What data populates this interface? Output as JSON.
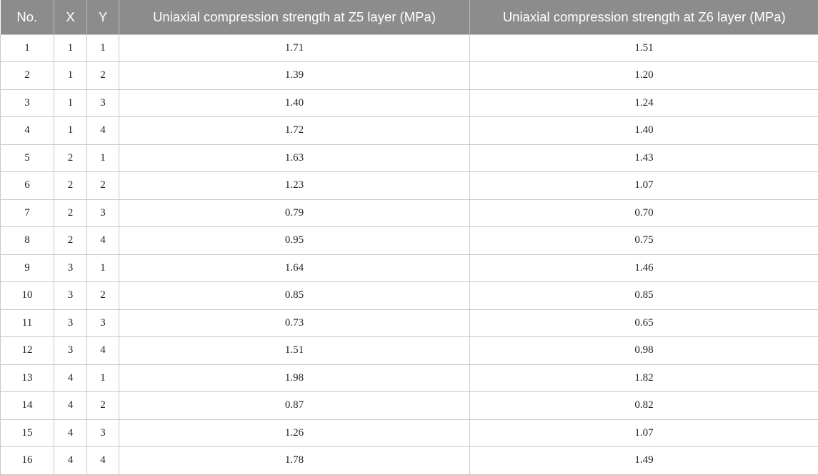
{
  "table": {
    "headers": [
      "No.",
      "X",
      "Y",
      "Uniaxial compression strength at Z5 layer (MPa)",
      "Uniaxial compression strength at Z6 layer (MPa)"
    ],
    "rows": [
      [
        "1",
        "1",
        "1",
        "1.71",
        "1.51"
      ],
      [
        "2",
        "1",
        "2",
        "1.39",
        "1.20"
      ],
      [
        "3",
        "1",
        "3",
        "1.40",
        "1.24"
      ],
      [
        "4",
        "1",
        "4",
        "1.72",
        "1.40"
      ],
      [
        "5",
        "2",
        "1",
        "1.63",
        "1.43"
      ],
      [
        "6",
        "2",
        "2",
        "1.23",
        "1.07"
      ],
      [
        "7",
        "2",
        "3",
        "0.79",
        "0.70"
      ],
      [
        "8",
        "2",
        "4",
        "0.95",
        "0.75"
      ],
      [
        "9",
        "3",
        "1",
        "1.64",
        "1.46"
      ],
      [
        "10",
        "3",
        "2",
        "0.85",
        "0.85"
      ],
      [
        "11",
        "3",
        "3",
        "0.73",
        "0.65"
      ],
      [
        "12",
        "3",
        "4",
        "1.51",
        "0.98"
      ],
      [
        "13",
        "4",
        "1",
        "1.98",
        "1.82"
      ],
      [
        "14",
        "4",
        "2",
        "0.87",
        "0.82"
      ],
      [
        "15",
        "4",
        "3",
        "1.26",
        "1.07"
      ],
      [
        "16",
        "4",
        "4",
        "1.78",
        "1.49"
      ]
    ]
  },
  "colors": {
    "header_bg": "#8c8c8c",
    "header_text": "#ffffff",
    "grid": "#c8c8c8"
  }
}
